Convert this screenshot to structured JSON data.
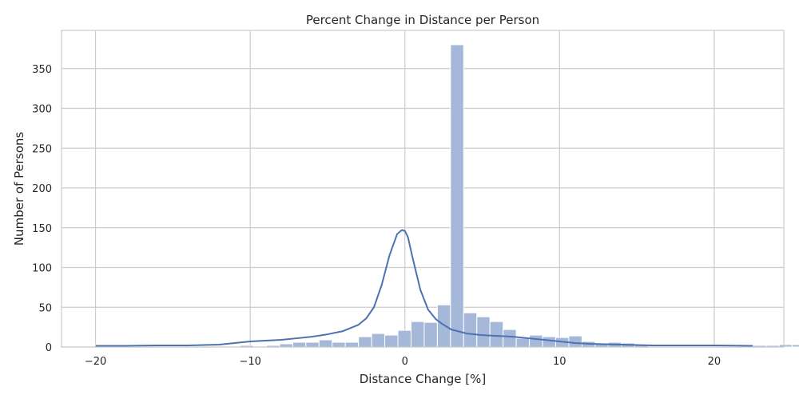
{
  "chart_data": {
    "type": "histogram",
    "title": "Percent Change in Distance per Person",
    "xlabel": "Distance Change [%]",
    "ylabel": "Number of Persons",
    "xlim": [
      -22.2,
      24.5
    ],
    "ylim": [
      0,
      398
    ],
    "xticks": [
      -20,
      -10,
      0,
      10,
      20
    ],
    "xtick_labels": [
      "−20",
      "−10",
      "0",
      "10",
      "20"
    ],
    "yticks": [
      0,
      50,
      100,
      150,
      200,
      250,
      300,
      350
    ],
    "grid": true,
    "bin_width": 0.85,
    "bin_start": -20.0,
    "counts": [
      3,
      2,
      1,
      1,
      0,
      1,
      1,
      1,
      1,
      1,
      1,
      2,
      1,
      2,
      4,
      6,
      6,
      9,
      6,
      6,
      13,
      17,
      15,
      21,
      32,
      31,
      53,
      380,
      43,
      38,
      32,
      22,
      11,
      15,
      13,
      12,
      14,
      7,
      4,
      6,
      5,
      2,
      1,
      1,
      1,
      1,
      1,
      1,
      1,
      2,
      2,
      2,
      3,
      3
    ],
    "bar_color": "#a5b8d9",
    "kde_color": "#4c72b0",
    "kde": {
      "x": [
        -20,
        -18,
        -16,
        -14,
        -12,
        -11,
        -10,
        -9,
        -8,
        -7,
        -6,
        -5,
        -4,
        -3,
        -2.5,
        -2,
        -1.5,
        -1,
        -0.5,
        -0.2,
        0,
        0.2,
        0.5,
        1,
        1.5,
        2,
        2.5,
        3,
        4,
        5,
        6,
        7,
        8,
        9,
        10,
        11,
        12,
        14,
        16,
        18,
        20,
        22.5
      ],
      "y": [
        1.5,
        1.5,
        2,
        2,
        3,
        5,
        7,
        8,
        9,
        11,
        13,
        16,
        20,
        28,
        36,
        50,
        78,
        115,
        142,
        147,
        146,
        138,
        112,
        72,
        47,
        35,
        28,
        22,
        17,
        15,
        14,
        13,
        11,
        9,
        7,
        5,
        4,
        3,
        2,
        2,
        2,
        1.5
      ]
    }
  }
}
